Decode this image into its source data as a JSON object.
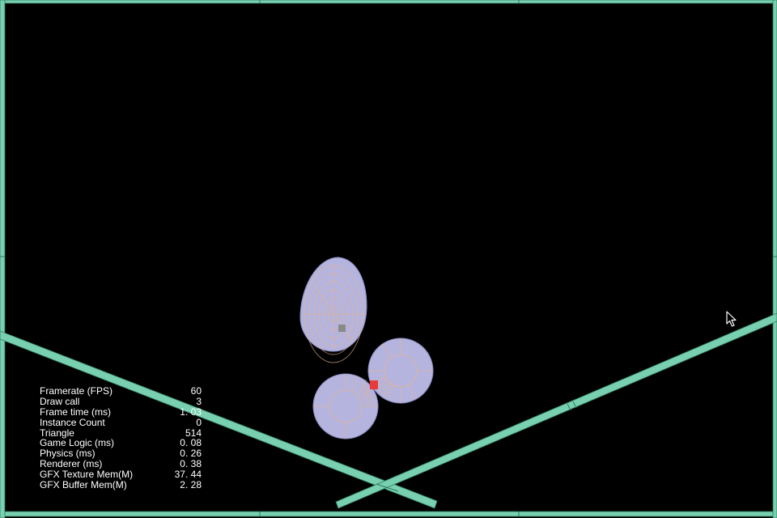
{
  "colors": {
    "background": "#000000",
    "wall": "#78d0b0",
    "wall_edge": "#2f7a5f",
    "body_fill": "#b4b4df",
    "body_line": "#e8b48a",
    "marker": "#e83a3a",
    "center_dot": "#8a8a8a",
    "stats_text": "#ffffff"
  },
  "stats": [
    {
      "label": "Framerate (FPS)",
      "value": "60"
    },
    {
      "label": "Draw call",
      "value": "3"
    },
    {
      "label": "Frame time (ms)",
      "value": "1. 03"
    },
    {
      "label": "Instance Count",
      "value": "0"
    },
    {
      "label": "Triangle",
      "value": "514"
    },
    {
      "label": "Game Logic (ms)",
      "value": "0. 08"
    },
    {
      "label": "Physics (ms)",
      "value": "0. 26"
    },
    {
      "label": "Renderer (ms)",
      "value": "0. 38"
    },
    {
      "label": "GFX Texture Mem(M)",
      "value": "37. 44"
    },
    {
      "label": "GFX Buffer Mem(M)",
      "value": "2. 28"
    }
  ],
  "icons": {
    "cursor": "pointer-arrow-icon"
  }
}
